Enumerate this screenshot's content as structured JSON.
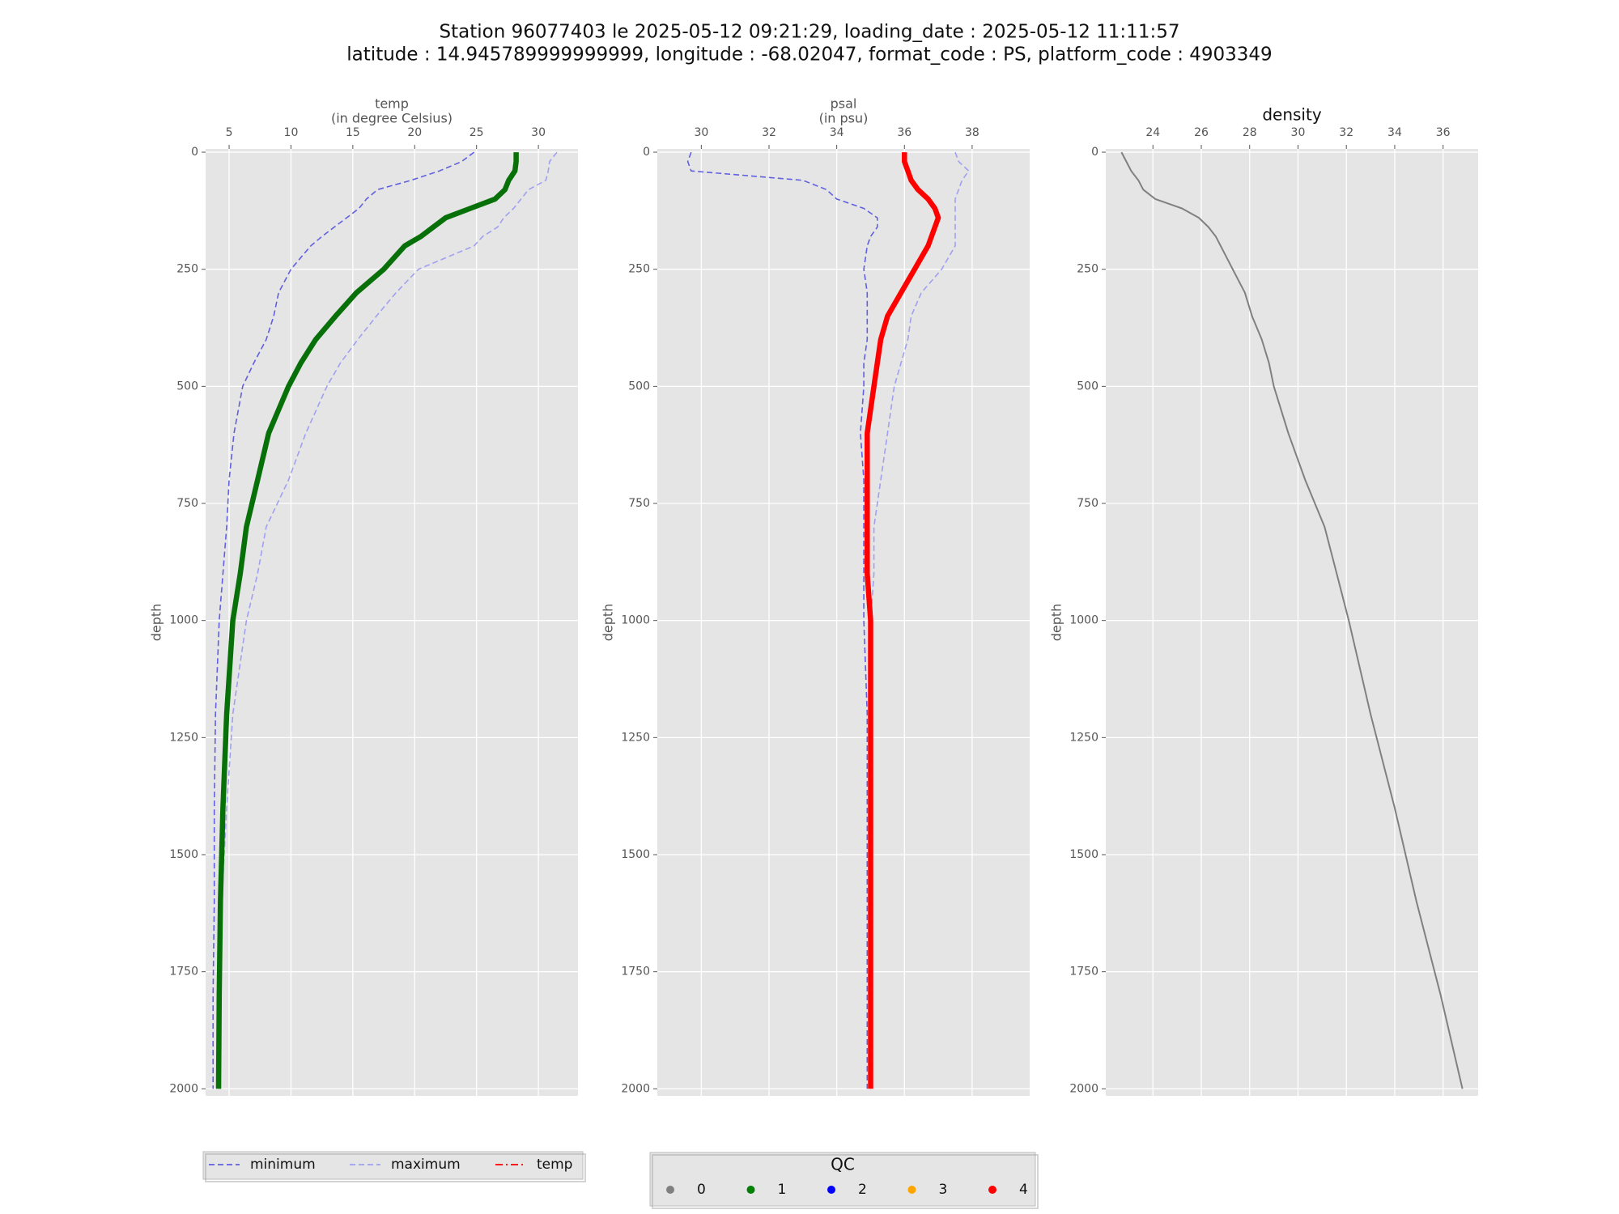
{
  "chart_data": [
    {
      "type": "line",
      "xlabel": [
        "temp",
        "(in degree Celsius)"
      ],
      "ylabel": "depth",
      "xlim": [
        3.1,
        33.2
      ],
      "ylim": [
        2015,
        -7
      ],
      "xticks": [
        5,
        10,
        15,
        20,
        25,
        30
      ],
      "yticks": [
        0,
        250,
        500,
        750,
        1000,
        1250,
        1500,
        1750,
        2000
      ],
      "grid": true,
      "y": [
        0,
        20,
        40,
        60,
        80,
        100,
        120,
        140,
        160,
        180,
        200,
        250,
        300,
        350,
        400,
        450,
        500,
        600,
        700,
        800,
        900,
        1000,
        1200,
        1400,
        1600,
        1800,
        2000
      ],
      "series": [
        {
          "name": "minimum",
          "color": "#6060e0",
          "linestyle": "dashed",
          "linewidth": 1.6,
          "values": [
            24.8,
            23.8,
            22.0,
            19.7,
            17.0,
            16.1,
            15.5,
            14.5,
            13.5,
            12.5,
            11.6,
            10.0,
            9.0,
            8.6,
            8.0,
            7.0,
            6.1,
            5.4,
            5.0,
            4.8,
            4.5,
            4.2,
            3.9,
            3.8,
            3.8,
            3.7,
            3.7
          ]
        },
        {
          "name": "maximum",
          "color": "#a0a0f0",
          "linestyle": "dashed",
          "linewidth": 1.6,
          "values": [
            31.5,
            30.9,
            30.8,
            30.6,
            29.2,
            28.6,
            28.0,
            27.2,
            26.7,
            25.5,
            24.8,
            20.3,
            18.5,
            16.9,
            15.4,
            14.0,
            12.9,
            11.2,
            9.8,
            8.0,
            7.3,
            6.4,
            5.3,
            4.8,
            4.4,
            4.2,
            4.1
          ]
        },
        {
          "name": "temp",
          "color": "#087008",
          "linestyle": "solid",
          "linewidth": 6.5,
          "values": [
            28.2,
            28.2,
            28.1,
            27.6,
            27.3,
            26.5,
            24.5,
            22.5,
            21.5,
            20.5,
            19.2,
            17.5,
            15.3,
            13.6,
            12.0,
            10.8,
            9.8,
            8.2,
            7.3,
            6.4,
            5.9,
            5.3,
            4.8,
            4.5,
            4.3,
            4.2,
            4.15
          ]
        }
      ]
    },
    {
      "type": "line",
      "xlabel": [
        "psal",
        "(in psu)"
      ],
      "ylabel": "depth",
      "xlim": [
        28.7,
        39.7
      ],
      "ylim": [
        2015,
        -7
      ],
      "xticks": [
        30,
        32,
        34,
        36,
        38
      ],
      "yticks": [
        0,
        250,
        500,
        750,
        1000,
        1250,
        1500,
        1750,
        2000
      ],
      "grid": true,
      "y": [
        0,
        20,
        40,
        60,
        80,
        100,
        120,
        140,
        160,
        180,
        200,
        250,
        300,
        350,
        400,
        450,
        500,
        600,
        700,
        800,
        900,
        1000,
        1200,
        1400,
        1600,
        1800,
        2000
      ],
      "series": [
        {
          "color": "#6060e0",
          "linestyle": "dashed",
          "linewidth": 1.6,
          "values": [
            29.7,
            29.6,
            29.7,
            33.0,
            33.7,
            34.0,
            34.8,
            35.2,
            35.2,
            35.0,
            34.9,
            34.8,
            34.9,
            34.9,
            34.9,
            34.8,
            34.8,
            34.7,
            34.8,
            34.8,
            34.8,
            34.8,
            34.9,
            34.9,
            34.9,
            34.9,
            34.9
          ]
        },
        {
          "color": "#a0a0f0",
          "linestyle": "dashed",
          "linewidth": 1.6,
          "values": [
            37.5,
            37.6,
            37.9,
            37.7,
            37.6,
            37.5,
            37.5,
            37.5,
            37.5,
            37.5,
            37.5,
            37.1,
            36.5,
            36.2,
            36.1,
            35.9,
            35.7,
            35.5,
            35.3,
            35.1,
            35.1,
            35.0,
            35.0,
            35.0,
            35.0,
            35.0,
            35.0
          ]
        },
        {
          "color": "#ff0000",
          "linestyle": "solid",
          "linewidth": 6.5,
          "values": [
            36.0,
            36.0,
            36.1,
            36.2,
            36.4,
            36.7,
            36.9,
            37.0,
            36.9,
            36.8,
            36.7,
            36.3,
            35.9,
            35.5,
            35.3,
            35.2,
            35.1,
            34.9,
            34.9,
            34.9,
            34.9,
            35.0,
            35.0,
            35.0,
            35.0,
            35.0,
            35.0
          ]
        }
      ]
    },
    {
      "type": "line",
      "title": "density",
      "ylabel": "depth",
      "xlim": [
        22.05,
        37.45
      ],
      "ylim": [
        2015,
        -7
      ],
      "xticks": [
        24,
        26,
        28,
        30,
        32,
        34,
        36
      ],
      "yticks": [
        0,
        250,
        500,
        750,
        1000,
        1250,
        1500,
        1750,
        2000
      ],
      "grid": true,
      "y": [
        0,
        20,
        40,
        60,
        80,
        100,
        120,
        140,
        160,
        180,
        200,
        250,
        300,
        350,
        400,
        450,
        500,
        600,
        700,
        800,
        900,
        1000,
        1200,
        1400,
        1600,
        1800,
        2000
      ],
      "series": [
        {
          "color": "#808080",
          "linestyle": "solid",
          "linewidth": 2,
          "values": [
            22.7,
            22.9,
            23.1,
            23.4,
            23.6,
            24.1,
            25.2,
            25.9,
            26.3,
            26.6,
            26.8,
            27.3,
            27.8,
            28.1,
            28.5,
            28.8,
            29.0,
            29.6,
            30.3,
            31.1,
            31.6,
            32.1,
            33.0,
            34.0,
            34.9,
            35.9,
            36.8
          ]
        }
      ]
    }
  ],
  "title": [
    "Station 96077403 le 2025-05-12 09:21:29, loading_date : 2025-05-12 11:11:57",
    "latitude : 14.945789999999999, longitude : -68.02047, format_code : PS, platform_code : 4903349"
  ],
  "legend": {
    "entries": [
      {
        "label": "minimum",
        "color": "#6060e0",
        "linestyle": "dashed"
      },
      {
        "label": "maximum",
        "color": "#a0a0f0",
        "linestyle": "dashed"
      },
      {
        "label": "temp",
        "color": "#ff0000",
        "linestyle": "dashdot"
      }
    ]
  },
  "qc_legend": {
    "title": "QC",
    "entries": [
      {
        "label": "0",
        "color": "#808080"
      },
      {
        "label": "1",
        "color": "#008000"
      },
      {
        "label": "2",
        "color": "#0000ff"
      },
      {
        "label": "3",
        "color": "#ffa500"
      },
      {
        "label": "4",
        "color": "#ff0000"
      }
    ]
  }
}
